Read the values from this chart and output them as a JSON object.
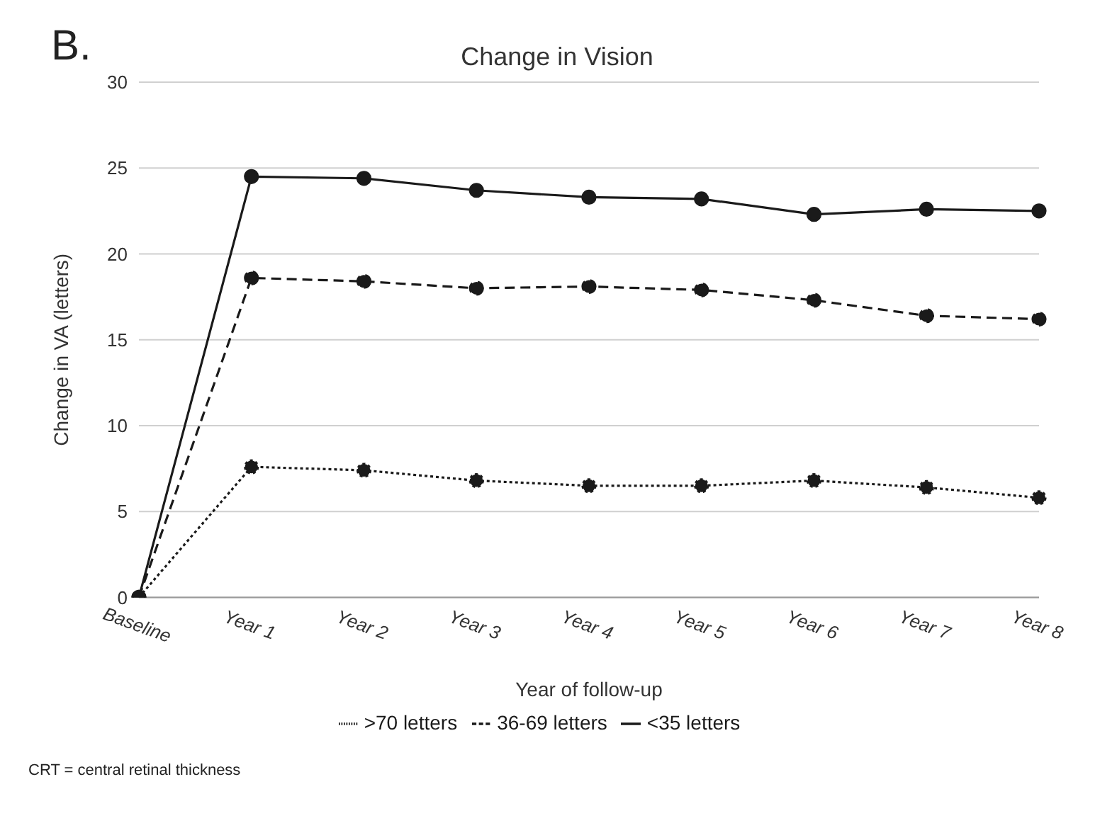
{
  "chart_data": {
    "type": "line",
    "title": "Change in Vision",
    "xlabel": "Year of follow-up",
    "ylabel": "Change in VA (letters)",
    "categories": [
      "Baseline",
      "Year 1",
      "Year 2",
      "Year 3",
      "Year 4",
      "Year 5",
      "Year 6",
      "Year 7",
      "Year 8"
    ],
    "series": [
      {
        "name": ">70 letters",
        "color": "#1a1a1a",
        "line_style": "dotted",
        "values": [
          0,
          7.6,
          7.4,
          6.8,
          6.5,
          6.5,
          6.8,
          6.4,
          5.8
        ]
      },
      {
        "name": "36-69 letters",
        "color": "#1a1a1a",
        "line_style": "dashed",
        "values": [
          0,
          18.6,
          18.4,
          18.0,
          18.1,
          17.9,
          17.3,
          16.4,
          16.2
        ]
      },
      {
        "name": "<35 letters",
        "color": "#1a1a1a",
        "line_style": "solid",
        "values": [
          0,
          24.5,
          24.4,
          23.7,
          23.3,
          23.2,
          22.3,
          22.6,
          22.5
        ]
      }
    ],
    "ylim": [
      0,
      30
    ],
    "yticks": [
      0,
      5,
      10,
      15,
      20,
      25,
      30
    ],
    "grid": "y",
    "legend": "bottom",
    "marker": "circle",
    "annotations": [
      "B.",
      "CRT = central retinal thickness"
    ]
  }
}
